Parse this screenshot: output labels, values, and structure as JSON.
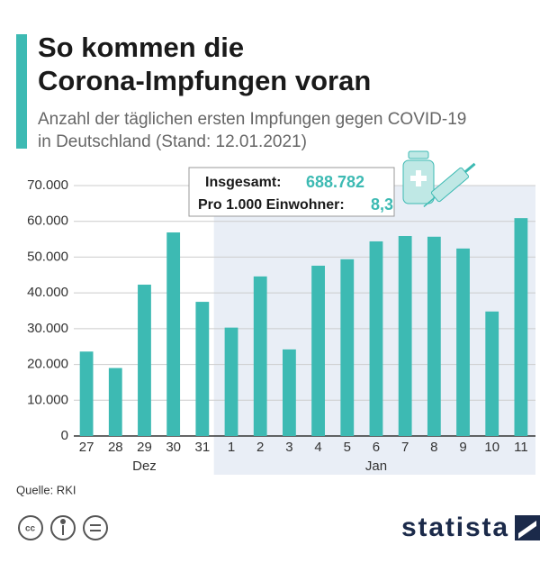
{
  "chart_data": {
    "type": "bar",
    "title_lines": [
      "So kommen die",
      "Corona-Impfungen voran"
    ],
    "subtitle_lines": [
      "Anzahl der täglichen ersten Impfungen gegen COVID-19",
      "in Deutschland (Stand: 12.01.2021)"
    ],
    "categories": [
      "27",
      "28",
      "29",
      "30",
      "31",
      "1",
      "2",
      "3",
      "4",
      "5",
      "6",
      "7",
      "8",
      "9",
      "10",
      "11"
    ],
    "groups": [
      {
        "label": "Dez",
        "count": 5
      },
      {
        "label": "Jan",
        "count": 11
      }
    ],
    "values": [
      23600,
      19000,
      42300,
      56900,
      37500,
      30300,
      44600,
      24200,
      47600,
      49400,
      54400,
      55900,
      55700,
      52400,
      34800,
      60900
    ],
    "color": "#3dbab3",
    "ylim": [
      0,
      70000
    ],
    "yticks": [
      0,
      {
        "value": 10000,
        "label": "10.000"
      },
      {
        "value": 20000,
        "label": "20.000"
      },
      {
        "value": 30000,
        "label": "30.000"
      },
      {
        "value": 40000,
        "label": "40.000"
      },
      {
        "value": 50000,
        "label": "50.000"
      },
      {
        "value": 60000,
        "label": "60.000"
      },
      {
        "value": 70000,
        "label": "70.000"
      }
    ],
    "grid": true,
    "annotation": {
      "line1_label": "Insgesamt:",
      "line1_value": "688.782",
      "line2_label": "Pro 1.000 Einwohner:",
      "line2_value": "8,3"
    },
    "source": "Quelle: RKI",
    "brand": "statista"
  }
}
